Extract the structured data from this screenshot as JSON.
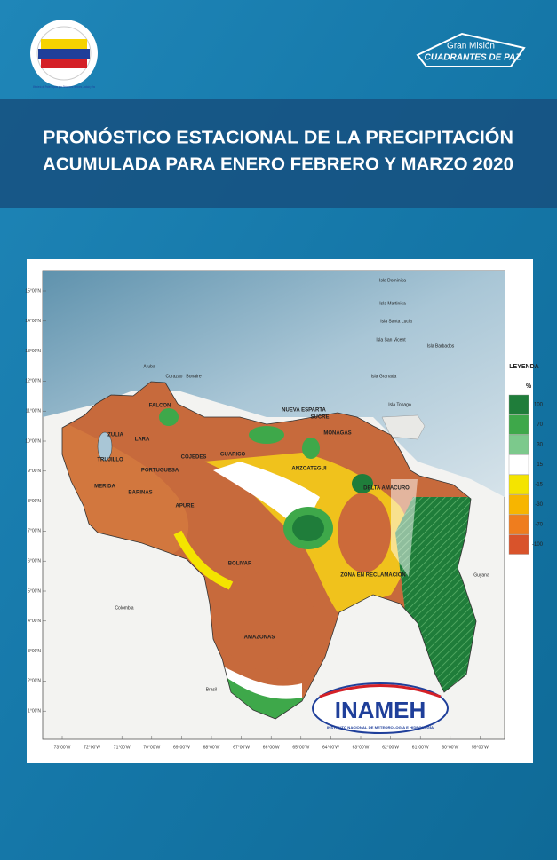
{
  "header": {
    "left_logo": "Ministerio del Poder Popular para Relaciones Interiores, Justicia y Paz",
    "right_logo": {
      "line1": "Gran Misión",
      "line2": "CUADRANTES DE PAZ"
    }
  },
  "title": [
    "PRONÓSTICO ESTACIONAL DE LA PRECIPITACIÓN",
    "ACUMULADA PARA ENERO FEBRERO Y MARZO 2020"
  ],
  "map": {
    "legend": {
      "title": "LEYENDA",
      "unit": "%",
      "items": [
        {
          "label": "100",
          "color": "#1f7d3a"
        },
        {
          "label": "70",
          "color": "#3ea84a"
        },
        {
          "label": "30",
          "color": "#7cc98c"
        },
        {
          "label": "15",
          "color": "#ffffff"
        },
        {
          "label": "-15",
          "color": "#f4e400"
        },
        {
          "label": "-30",
          "color": "#f7b500"
        },
        {
          "label": "-70",
          "color": "#ef7d1e"
        },
        {
          "label": "-100",
          "color": "#d9532b"
        }
      ]
    },
    "lat_labels": [
      "15°00'N",
      "14°00'N",
      "13°00'N",
      "12°00'N",
      "11°00'N",
      "10°00'N",
      "9°00'N",
      "8°00'N",
      "7°00'N",
      "6°00'N",
      "5°00'N",
      "4°00'N",
      "3°00'N",
      "2°00'N",
      "1°00'N"
    ],
    "lon_labels": [
      "73°00'W",
      "72°00'W",
      "71°00'W",
      "70°00'W",
      "69°00'W",
      "68°00'W",
      "67°00'W",
      "66°00'W",
      "65°00'W",
      "64°00'W",
      "63°00'W",
      "62°00'W",
      "61°00'W",
      "60°00'W",
      "59°00'W"
    ],
    "places": [
      "Isla Dominica",
      "Isla Martinica",
      "Isla Santa Lucia",
      "Isla San Vicent",
      "Isla Barbados",
      "Isla Granada",
      "Isla Tobago",
      "Aruba",
      "Curazao",
      "Bonaire",
      "FALCON",
      "ZULIA",
      "LARA",
      "TRUJILLO",
      "PORTUGUESA",
      "COJEDES",
      "MERIDA",
      "BARINAS",
      "APURE",
      "GUARICO",
      "NUEVA ESPARTA",
      "SUCRE",
      "MONAGAS",
      "ANZOATEGUI",
      "DELTA AMACURO",
      "BOLIVAR",
      "AMAZONAS",
      "ZONA EN RECLAMACION",
      "Colombia",
      "Brasil",
      "Guyana"
    ]
  },
  "footer_logo": {
    "name": "INAMEH",
    "subtitle": "INSTITUTO NACIONAL DE METEOROLOGÍA E HIDROLOGÍA"
  }
}
